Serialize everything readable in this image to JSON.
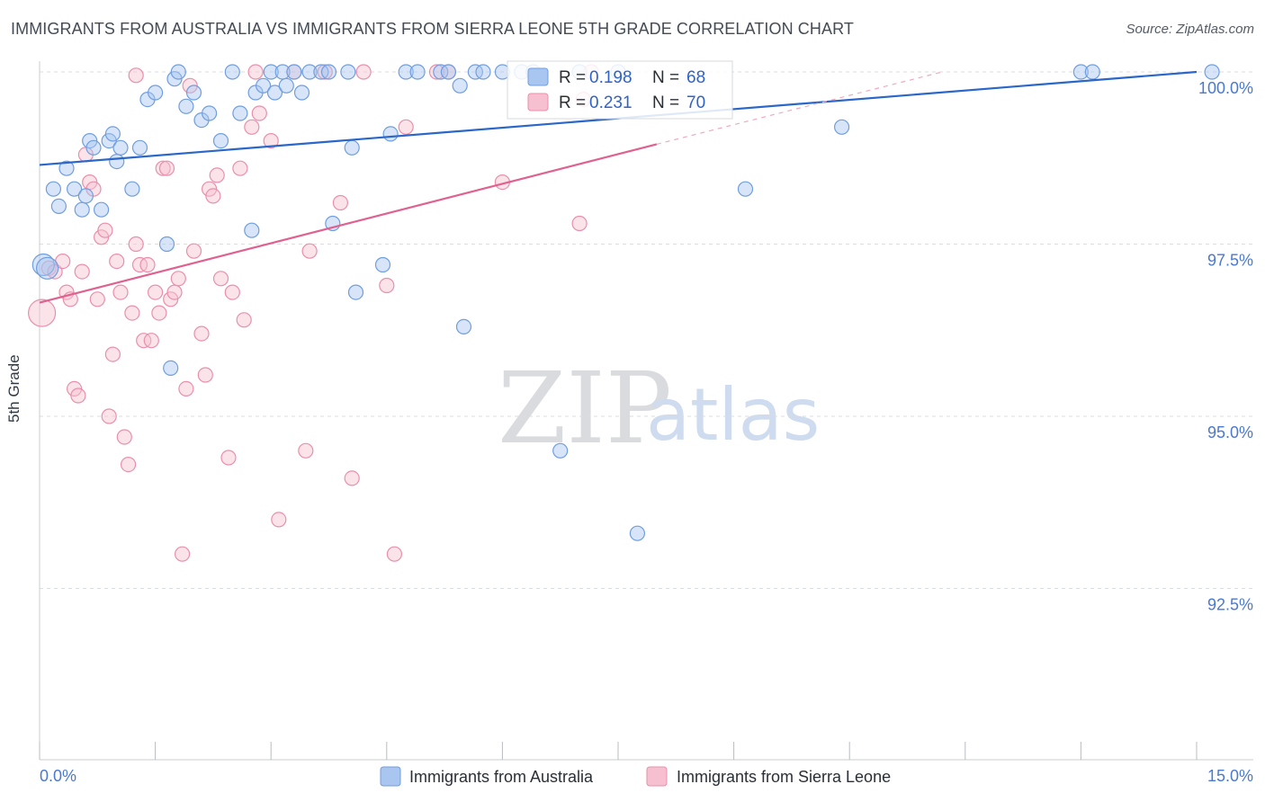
{
  "chart_data": {
    "type": "scatter",
    "title": "IMMIGRANTS FROM AUSTRALIA VS IMMIGRANTS FROM SIERRA LEONE 5TH GRADE CORRELATION CHART",
    "source": "Source: ZipAtlas.com",
    "xlabel": "",
    "ylabel": "5th Grade",
    "xlim": [
      0,
      15
    ],
    "ylim": [
      90.0,
      100.4
    ],
    "x_tick_labels": [
      "0.0%",
      "15.0%"
    ],
    "y_ticks": [
      {
        "value": 100.0,
        "label": "100.0%"
      },
      {
        "value": 97.5,
        "label": "97.5%"
      },
      {
        "value": 95.0,
        "label": "95.0%"
      },
      {
        "value": 92.5,
        "label": "92.5%"
      }
    ],
    "watermark": {
      "zip": "ZIP",
      "atlas": "atlas"
    },
    "legend": {
      "r_label": "R =",
      "n_label": "N =",
      "entries": [
        {
          "name": "Immigrants from Australia",
          "r": "0.198",
          "n": "68",
          "color": "#a9c6f0",
          "edge": "#6f9ee0"
        },
        {
          "name": "Immigrants from Sierra Leone",
          "r": "0.231",
          "n": "70",
          "color": "#f7c0d0",
          "edge": "#ea8fab"
        }
      ]
    },
    "series": [
      {
        "name": "Immigrants from Australia",
        "color": "#a9c6f0",
        "edge": "#6f9ee0",
        "trend": {
          "x0": 0.0,
          "y0": 98.65,
          "x1": 15.0,
          "y1": 100.0,
          "color": "#2a67c9"
        },
        "points": [
          [
            0.05,
            97.2,
            1
          ],
          [
            0.1,
            97.15,
            1
          ],
          [
            0.18,
            98.3,
            0
          ],
          [
            0.25,
            98.05,
            0
          ],
          [
            0.35,
            98.6,
            0
          ],
          [
            0.45,
            98.3,
            0
          ],
          [
            0.55,
            98.0,
            0
          ],
          [
            0.6,
            98.2,
            0
          ],
          [
            0.65,
            99.0,
            0
          ],
          [
            0.7,
            98.9,
            0
          ],
          [
            0.8,
            98.0,
            0
          ],
          [
            0.9,
            99.0,
            0
          ],
          [
            0.95,
            99.1,
            0
          ],
          [
            1.0,
            98.7,
            0
          ],
          [
            1.05,
            98.9,
            0
          ],
          [
            1.2,
            98.3,
            0
          ],
          [
            1.3,
            98.9,
            0
          ],
          [
            1.4,
            99.6,
            0
          ],
          [
            1.5,
            99.7,
            0
          ],
          [
            1.65,
            97.5,
            0
          ],
          [
            1.7,
            95.7,
            0
          ],
          [
            1.75,
            99.9,
            0
          ],
          [
            1.8,
            100.0,
            0
          ],
          [
            1.9,
            99.5,
            0
          ],
          [
            2.0,
            99.7,
            0
          ],
          [
            2.1,
            99.3,
            0
          ],
          [
            2.2,
            99.4,
            0
          ],
          [
            2.35,
            99.0,
            0
          ],
          [
            2.5,
            100.0,
            0
          ],
          [
            2.6,
            99.4,
            0
          ],
          [
            2.75,
            97.7,
            0
          ],
          [
            2.8,
            99.7,
            0
          ],
          [
            2.9,
            99.8,
            0
          ],
          [
            3.0,
            100.0,
            0
          ],
          [
            3.05,
            99.7,
            0
          ],
          [
            3.15,
            100.0,
            0
          ],
          [
            3.2,
            99.8,
            0
          ],
          [
            3.3,
            100.0,
            0
          ],
          [
            3.4,
            99.7,
            0
          ],
          [
            3.5,
            100.0,
            0
          ],
          [
            3.65,
            100.0,
            0
          ],
          [
            3.75,
            100.0,
            0
          ],
          [
            3.8,
            97.8,
            0
          ],
          [
            4.0,
            100.0,
            0
          ],
          [
            4.05,
            98.9,
            0
          ],
          [
            4.1,
            96.8,
            0
          ],
          [
            4.45,
            97.2,
            0
          ],
          [
            4.55,
            99.1,
            0
          ],
          [
            4.75,
            100.0,
            0
          ],
          [
            4.9,
            100.0,
            0
          ],
          [
            5.2,
            100.0,
            0
          ],
          [
            5.3,
            100.0,
            0
          ],
          [
            5.45,
            99.8,
            0
          ],
          [
            5.5,
            96.3,
            0
          ],
          [
            5.65,
            100.0,
            0
          ],
          [
            5.75,
            100.0,
            0
          ],
          [
            6.0,
            100.0,
            0
          ],
          [
            6.25,
            100.0,
            0
          ],
          [
            6.4,
            100.0,
            0
          ],
          [
            6.75,
            94.5,
            0
          ],
          [
            7.0,
            100.0,
            0
          ],
          [
            7.5,
            100.0,
            0
          ],
          [
            7.75,
            93.3,
            0
          ],
          [
            9.15,
            98.3,
            0
          ],
          [
            10.4,
            99.2,
            0
          ],
          [
            13.5,
            100.0,
            0
          ],
          [
            13.65,
            100.0,
            0
          ],
          [
            15.2,
            100.0,
            0
          ]
        ]
      },
      {
        "name": "Immigrants from Sierra Leone",
        "color": "#f7c0d0",
        "edge": "#ea8fab",
        "trend": {
          "x0": 0.0,
          "y0": 96.65,
          "x1": 8.0,
          "y1": 98.95,
          "color": "#e0608f"
        },
        "trend_dashed": {
          "x0": 8.0,
          "y0": 98.95,
          "x1": 11.7,
          "y1": 100.0
        },
        "points": [
          [
            0.03,
            96.5,
            2
          ],
          [
            0.12,
            97.15,
            0
          ],
          [
            0.2,
            97.1,
            0
          ],
          [
            0.3,
            97.25,
            0
          ],
          [
            0.35,
            96.8,
            0
          ],
          [
            0.4,
            96.7,
            0
          ],
          [
            0.45,
            95.4,
            0
          ],
          [
            0.5,
            95.3,
            0
          ],
          [
            0.55,
            97.1,
            0
          ],
          [
            0.6,
            98.8,
            0
          ],
          [
            0.65,
            98.4,
            0
          ],
          [
            0.7,
            98.3,
            0
          ],
          [
            0.75,
            96.7,
            0
          ],
          [
            0.8,
            97.6,
            0
          ],
          [
            0.85,
            97.7,
            0
          ],
          [
            0.9,
            95.0,
            0
          ],
          [
            0.95,
            95.9,
            0
          ],
          [
            1.0,
            97.25,
            0
          ],
          [
            1.05,
            96.8,
            0
          ],
          [
            1.1,
            94.7,
            0
          ],
          [
            1.15,
            94.3,
            0
          ],
          [
            1.2,
            96.5,
            0
          ],
          [
            1.25,
            97.5,
            0
          ],
          [
            1.3,
            97.2,
            0
          ],
          [
            1.35,
            96.1,
            0
          ],
          [
            1.4,
            97.2,
            0
          ],
          [
            1.45,
            96.1,
            0
          ],
          [
            1.5,
            96.8,
            0
          ],
          [
            1.55,
            96.5,
            0
          ],
          [
            1.6,
            98.6,
            0
          ],
          [
            1.65,
            98.6,
            0
          ],
          [
            1.7,
            96.7,
            0
          ],
          [
            1.75,
            96.8,
            0
          ],
          [
            1.8,
            97.0,
            0
          ],
          [
            1.85,
            93.0,
            0
          ],
          [
            1.9,
            95.4,
            0
          ],
          [
            1.95,
            99.8,
            0
          ],
          [
            2.0,
            97.4,
            0
          ],
          [
            2.1,
            96.2,
            0
          ],
          [
            2.15,
            95.6,
            0
          ],
          [
            2.2,
            98.3,
            0
          ],
          [
            2.25,
            98.2,
            0
          ],
          [
            2.3,
            98.5,
            0
          ],
          [
            2.35,
            97.0,
            0
          ],
          [
            2.45,
            94.4,
            0
          ],
          [
            2.5,
            96.8,
            0
          ],
          [
            2.6,
            98.6,
            0
          ],
          [
            2.65,
            96.4,
            0
          ],
          [
            2.75,
            99.2,
            0
          ],
          [
            2.8,
            100.0,
            0
          ],
          [
            2.85,
            99.4,
            0
          ],
          [
            3.0,
            99.0,
            0
          ],
          [
            3.1,
            93.5,
            0
          ],
          [
            3.3,
            100.0,
            0
          ],
          [
            3.45,
            94.5,
            0
          ],
          [
            3.5,
            97.4,
            0
          ],
          [
            3.7,
            100.0,
            0
          ],
          [
            3.9,
            98.1,
            0
          ],
          [
            4.05,
            94.1,
            0
          ],
          [
            4.2,
            100.0,
            0
          ],
          [
            4.5,
            96.9,
            0
          ],
          [
            4.6,
            93.0,
            0
          ],
          [
            4.75,
            99.2,
            0
          ],
          [
            5.15,
            100.0,
            0
          ],
          [
            5.3,
            100.0,
            0
          ],
          [
            6.0,
            98.4,
            0
          ],
          [
            7.0,
            97.8,
            0
          ],
          [
            7.05,
            99.6,
            0
          ],
          [
            7.15,
            100.0,
            0
          ],
          [
            1.25,
            99.95,
            0
          ]
        ]
      }
    ]
  }
}
